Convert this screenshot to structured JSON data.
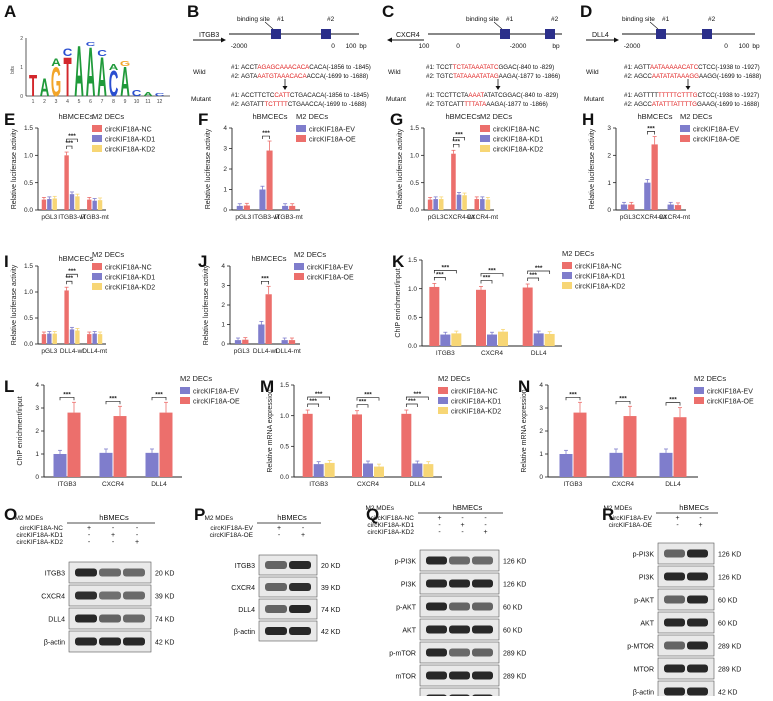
{
  "colors": {
    "nc": "#ec6f6c",
    "kd1": "#7f7dcc",
    "kd2": "#f7d675",
    "ev": "#7f7dcc",
    "oe": "#ec6f6c",
    "site": "#2b2f8a",
    "mut_red": "#e02020"
  },
  "panel_a": {
    "letter": "A",
    "y_label": "bits",
    "y_ticks": [
      "2",
      "1",
      "0"
    ],
    "x_ticks": [
      "1",
      "2",
      "3",
      "4",
      "5",
      "6",
      "7",
      "8",
      "9",
      "10",
      "11",
      "12"
    ],
    "logo_letters": [
      "T",
      "A",
      "G",
      "T",
      "A",
      "A",
      "A",
      "C",
      "A"
    ]
  },
  "promoters": [
    {
      "letter": "B",
      "gene": "ITGB3",
      "arrow": "right",
      "site1": "#1",
      "site2": "#2",
      "site_label": "binding site",
      "axis": [
        "-2000",
        "0",
        "100",
        "bp"
      ],
      "wild_label": "Wild",
      "mutant_label": "Mutant",
      "wild": [
        {
          "pre": "#1: ACCT",
          "mid": "AGAGCAAACACA",
          "post": "CACA(-1856 to -1845)"
        },
        {
          "pre": "#2: AGTA",
          "mid": "AATGTAAACACA",
          "post": "ACCA(-1699 to -1688)"
        }
      ],
      "mutant": [
        {
          "pre": "#1: ACCTTCTC",
          "mid": "CATT",
          "post": "CTGACACA(-1856 to -1845)"
        },
        {
          "pre": "#2: AGTATT",
          "mid": "TCTTTT",
          "post": "CTGAACCA(-1699 to -1688)"
        }
      ]
    },
    {
      "letter": "C",
      "gene": "CXCR4",
      "arrow": "left",
      "site1": "#1",
      "site2": "#2",
      "site_label": "binding site",
      "axis": [
        "100",
        "0",
        "-2000",
        "bp"
      ],
      "wild_label": "Wild",
      "mutant_label": "Mutant",
      "wild": [
        {
          "pre": "#1: TCCT",
          "mid": "TCTATAAATATC",
          "post": "GGAC(-840 to -829)"
        },
        {
          "pre": "#2: TGTC",
          "mid": "TATAAAATATAG",
          "post": "AAGA(-1877 to -1866)"
        }
      ],
      "mutant": [
        {
          "pre": "#1: TCCTTCTA",
          "mid": "AAAT",
          "post": "ATATCGGAC(-840 to -829)"
        },
        {
          "pre": "#2: TGTCATT",
          "mid": "TTTATA",
          "post": "AAGA(-1877 to -1866)"
        }
      ]
    },
    {
      "letter": "D",
      "gene": "DLL4",
      "arrow": "right",
      "site1": "#1",
      "site2": "#2",
      "site_label": "binding site",
      "axis": [
        "-2000",
        "0",
        "100",
        "bp"
      ],
      "wild_label": "Wild",
      "mutant_label": "Mutant",
      "wild": [
        {
          "pre": "#1: AGTT",
          "mid": "AATAAAAACATC",
          "post": "CTCC(-1938 to -1927)"
        },
        {
          "pre": "#2: AGCC",
          "mid": "AATATATAAAGG",
          "post": "AAGG(-1699 to -1688)"
        }
      ],
      "mutant": [
        {
          "pre": "#1: AGTTTT",
          "mid": "TTTTTCTTTG",
          "post": "CTCC(-1938 to -1927)"
        },
        {
          "pre": "#2: AGCC",
          "mid": "ATATTTATTTTG",
          "post": "GAAG(-1699 to -1688)"
        }
      ]
    }
  ],
  "chart_data": [
    {
      "letter": "E",
      "type": "bar",
      "title": "hBMCECs",
      "legend_title": "M2 DECs",
      "ylabel": "Relative luciferase activity",
      "ylim": [
        0,
        1.5
      ],
      "yticks": [
        "0.0",
        "0.5",
        "1.0",
        "1.5"
      ],
      "categories": [
        "pGL3",
        "ITGB3-wt",
        "ITGB3-mt"
      ],
      "series": [
        {
          "name": "circKIF18A-NC",
          "color_key": "nc",
          "values": [
            0.19,
            1.0,
            0.19
          ]
        },
        {
          "name": "circKIF18A-KD1",
          "color_key": "kd1",
          "values": [
            0.2,
            0.29,
            0.17
          ]
        },
        {
          "name": "circKIF18A-KD2",
          "color_key": "kd2",
          "values": [
            0.21,
            0.25,
            0.18
          ]
        }
      ],
      "sig": [
        "***",
        "***"
      ]
    },
    {
      "letter": "F",
      "type": "bar",
      "title": "hBMCECs",
      "legend_title": "M2 DECs",
      "ylabel": "Relative luciferase activity",
      "ylim": [
        0,
        4
      ],
      "yticks": [
        "0",
        "1",
        "2",
        "3",
        "4"
      ],
      "categories": [
        "pGL3",
        "ITGB3-wt",
        "ITGB3-mt"
      ],
      "series": [
        {
          "name": "circKIF18A-EV",
          "color_key": "ev",
          "values": [
            0.2,
            1.0,
            0.2
          ]
        },
        {
          "name": "circKIF18A-OE",
          "color_key": "oe",
          "values": [
            0.22,
            2.9,
            0.2
          ]
        }
      ],
      "sig": [
        "***"
      ]
    },
    {
      "letter": "G",
      "type": "bar",
      "title": "hBMCECs",
      "legend_title": "M2 DECs",
      "ylabel": "Relative luciferase activity",
      "ylim": [
        0,
        1.5
      ],
      "yticks": [
        "0.0",
        "0.5",
        "1.0",
        "1.5"
      ],
      "categories": [
        "pGL3",
        "CXCR4-wt",
        "CXCR4-mt"
      ],
      "series": [
        {
          "name": "circKIF18A-NC",
          "color_key": "nc",
          "values": [
            0.19,
            1.03,
            0.2
          ]
        },
        {
          "name": "circKIF18A-KD1",
          "color_key": "kd1",
          "values": [
            0.2,
            0.28,
            0.2
          ]
        },
        {
          "name": "circKIF18A-KD2",
          "color_key": "kd2",
          "values": [
            0.2,
            0.27,
            0.19
          ]
        }
      ],
      "sig": [
        "***",
        "***"
      ]
    },
    {
      "letter": "H",
      "type": "bar",
      "title": "hBMCECs",
      "legend_title": "M2 DECs",
      "ylabel": "Relative luciferase activity",
      "ylim": [
        0,
        3
      ],
      "yticks": [
        "0",
        "1",
        "2",
        "3"
      ],
      "categories": [
        "pGL3",
        "CXCR4-wt",
        "CXCR4-mt"
      ],
      "series": [
        {
          "name": "circKIF18A-EV",
          "color_key": "ev",
          "values": [
            0.2,
            1.0,
            0.2
          ]
        },
        {
          "name": "circKIF18A-OE",
          "color_key": "oe",
          "values": [
            0.2,
            2.4,
            0.18
          ]
        }
      ],
      "sig": [
        "***"
      ]
    },
    {
      "letter": "I",
      "type": "bar",
      "title": "hBMCECs",
      "legend_title": "M2 DECs",
      "ylabel": "Relative luciferase activity",
      "ylim": [
        0,
        1.5
      ],
      "yticks": [
        "0.0",
        "0.5",
        "1.0",
        "1.5"
      ],
      "categories": [
        "pGL3",
        "DLL4-wt",
        "DLL4-mt"
      ],
      "series": [
        {
          "name": "circKIF18A-NC",
          "color_key": "nc",
          "values": [
            0.19,
            1.03,
            0.19
          ]
        },
        {
          "name": "circKIF18A-KD1",
          "color_key": "kd1",
          "values": [
            0.2,
            0.28,
            0.2
          ]
        },
        {
          "name": "circKIF18A-KD2",
          "color_key": "kd2",
          "values": [
            0.2,
            0.26,
            0.19
          ]
        }
      ],
      "sig": [
        "***",
        "***"
      ]
    },
    {
      "letter": "J",
      "type": "bar",
      "title": "hBMCECs",
      "legend_title": "M2 DECs",
      "ylabel": "Relative luciferase activity",
      "ylim": [
        0,
        4
      ],
      "yticks": [
        "0",
        "1",
        "2",
        "3",
        "4"
      ],
      "categories": [
        "pGL3",
        "DLL4-wt",
        "DLL4-mt"
      ],
      "series": [
        {
          "name": "circKIF18A-EV",
          "color_key": "ev",
          "values": [
            0.2,
            1.0,
            0.2
          ]
        },
        {
          "name": "circKIF18A-OE",
          "color_key": "oe",
          "values": [
            0.22,
            2.55,
            0.2
          ]
        }
      ],
      "sig": [
        "***"
      ]
    },
    {
      "letter": "K",
      "type": "bar",
      "title": "",
      "legend_title": "M2 DECs",
      "ylabel": "ChIP enrichment/input",
      "ylim": [
        0,
        1.5
      ],
      "yticks": [
        "0.0",
        "0.5",
        "1.0",
        "1.5"
      ],
      "categories": [
        "ITGB3",
        "CXCR4",
        "DLL4"
      ],
      "series": [
        {
          "name": "circKIF18A-NC",
          "color_key": "nc",
          "values": [
            1.03,
            0.98,
            1.02
          ]
        },
        {
          "name": "circKIF18A-KD1",
          "color_key": "kd1",
          "values": [
            0.2,
            0.2,
            0.22
          ]
        },
        {
          "name": "circKIF18A-KD2",
          "color_key": "kd2",
          "values": [
            0.22,
            0.25,
            0.21
          ]
        }
      ],
      "sig": [
        "***",
        "***"
      ]
    },
    {
      "letter": "L",
      "type": "bar",
      "title": "",
      "legend_title": "M2 DECs",
      "ylabel": "ChIP enrichment/input",
      "ylim": [
        0,
        4
      ],
      "yticks": [
        "0",
        "1",
        "2",
        "3",
        "4"
      ],
      "categories": [
        "ITGB3",
        "CXCR4",
        "DLL4"
      ],
      "series": [
        {
          "name": "circKIF18A-EV",
          "color_key": "ev",
          "values": [
            1.0,
            1.05,
            1.05
          ]
        },
        {
          "name": "circKIF18A-OE",
          "color_key": "oe",
          "values": [
            2.8,
            2.65,
            2.8
          ]
        }
      ],
      "sig": [
        "***"
      ]
    },
    {
      "letter": "M",
      "type": "bar",
      "title": "",
      "legend_title": "M2 DECs",
      "ylabel": "Relative mRNA expression",
      "ylim": [
        0,
        1.5
      ],
      "yticks": [
        "0.0",
        "0.5",
        "1.0",
        "1.5"
      ],
      "categories": [
        "ITGB3",
        "CXCR4",
        "DLL4"
      ],
      "series": [
        {
          "name": "circKIF18A-NC",
          "color_key": "nc",
          "values": [
            1.03,
            1.02,
            1.03
          ]
        },
        {
          "name": "circKIF18A-KD1",
          "color_key": "kd1",
          "values": [
            0.21,
            0.22,
            0.22
          ]
        },
        {
          "name": "circKIF18A-KD2",
          "color_key": "kd2",
          "values": [
            0.23,
            0.17,
            0.21
          ]
        }
      ],
      "sig": [
        "***",
        "***"
      ]
    },
    {
      "letter": "N",
      "type": "bar",
      "title": "",
      "legend_title": "M2 DECs",
      "ylabel": "Relative mRNA expression",
      "ylim": [
        0,
        4
      ],
      "yticks": [
        "0",
        "1",
        "2",
        "3",
        "4"
      ],
      "categories": [
        "ITGB3",
        "CXCR4",
        "DLL4"
      ],
      "series": [
        {
          "name": "circKIF18A-EV",
          "color_key": "ev",
          "values": [
            1.0,
            1.05,
            1.05
          ]
        },
        {
          "name": "circKIF18A-OE",
          "color_key": "oe",
          "values": [
            2.8,
            2.65,
            2.6
          ]
        }
      ],
      "sig": [
        "***"
      ]
    }
  ],
  "blots": [
    {
      "letter": "O",
      "header": "hBMECs",
      "label_w": 63,
      "lane_w": 24,
      "top_pad": 16,
      "band_h": 22,
      "conditions": [
        {
          "label": "M2 MDEs",
          "marks": []
        },
        {
          "label": "circKIF18A-NC",
          "marks": [
            "+",
            "-",
            "-"
          ]
        },
        {
          "label": "circKIF18A-KD1",
          "marks": [
            "-",
            "+",
            "-"
          ]
        },
        {
          "label": "circKIF18A-KD2",
          "marks": [
            "-",
            "-",
            "+"
          ]
        }
      ],
      "rows": [
        {
          "protein": "ITGB3",
          "kd": "20 KD",
          "intensity": [
            1.0,
            0.45,
            0.45
          ]
        },
        {
          "protein": "CXCR4",
          "kd": "39 KD",
          "intensity": [
            0.95,
            0.4,
            0.45
          ]
        },
        {
          "protein": "DLL4",
          "kd": "74 KD",
          "intensity": [
            1.0,
            0.5,
            0.45
          ]
        },
        {
          "protein": "β-actin",
          "kd": "42 KD",
          "intensity": [
            1.0,
            1.0,
            1.0
          ]
        }
      ]
    },
    {
      "letter": "P",
      "header": "hBMECs",
      "label_w": 63,
      "lane_w": 24,
      "top_pad": 16,
      "band_h": 21,
      "conditions": [
        {
          "label": "M2 MDEs",
          "marks": []
        },
        {
          "label": "circKIF18A-EV",
          "marks": [
            "+",
            "-"
          ]
        },
        {
          "label": "circKIF18A-OE",
          "marks": [
            "-",
            "+"
          ]
        }
      ],
      "rows": [
        {
          "protein": "ITGB3",
          "kd": "20 KD",
          "intensity": [
            0.5,
            1.0
          ]
        },
        {
          "protein": "CXCR4",
          "kd": "39 KD",
          "intensity": [
            0.5,
            0.95
          ]
        },
        {
          "protein": "DLL4",
          "kd": "74 KD",
          "intensity": [
            0.5,
            1.0
          ]
        },
        {
          "protein": "β-actin",
          "kd": "42 KD",
          "intensity": [
            1.0,
            1.0
          ]
        }
      ]
    },
    {
      "letter": "Q",
      "header": "hBMECs",
      "label_w": 56,
      "lane_w": 23,
      "top_pad": 14,
      "band_h": 22,
      "conditions": [
        {
          "label": "M2 MDEs",
          "marks": []
        },
        {
          "label": "circKIF18A-NC",
          "marks": [
            "+",
            "-",
            "-"
          ]
        },
        {
          "label": "circKIF18A-KD1",
          "marks": [
            "-",
            "+",
            "-"
          ]
        },
        {
          "label": "circKIF18A-KD2",
          "marks": [
            "-",
            "-",
            "+"
          ]
        }
      ],
      "rows": [
        {
          "protein": "p-PI3K",
          "kd": "126 KD",
          "intensity": [
            1.0,
            0.45,
            0.45
          ]
        },
        {
          "protein": "PI3K",
          "kd": "126 KD",
          "intensity": [
            1.0,
            1.0,
            1.0
          ]
        },
        {
          "protein": "p-AKT",
          "kd": "60 KD",
          "intensity": [
            1.0,
            0.5,
            0.5
          ]
        },
        {
          "protein": "AKT",
          "kd": "60 KD",
          "intensity": [
            1.0,
            1.0,
            1.0
          ]
        },
        {
          "protein": "p-mTOR",
          "kd": "289 KD",
          "intensity": [
            1.0,
            0.45,
            0.5
          ]
        },
        {
          "protein": "mTOR",
          "kd": "289 KD",
          "intensity": [
            1.0,
            1.0,
            1.0
          ]
        },
        {
          "protein": "β-actin",
          "kd": "42 KD",
          "intensity": [
            1.0,
            1.0,
            1.0
          ]
        }
      ]
    },
    {
      "letter": "R",
      "header": "hBMECs",
      "label_w": 56,
      "lane_w": 23,
      "top_pad": 14,
      "band_h": 22,
      "conditions": [
        {
          "label": "M2 MDEs",
          "marks": []
        },
        {
          "label": "circKIF18A-EV",
          "marks": [
            "+",
            "-"
          ]
        },
        {
          "label": "circKIF18A-OE",
          "marks": [
            "-",
            "+"
          ]
        }
      ],
      "rows": [
        {
          "protein": "p-PI3K",
          "kd": "126 KD",
          "intensity": [
            0.5,
            1.0
          ]
        },
        {
          "protein": "PI3K",
          "kd": "126 KD",
          "intensity": [
            1.0,
            1.0
          ]
        },
        {
          "protein": "p-AKT",
          "kd": "60 KD",
          "intensity": [
            0.5,
            1.0
          ]
        },
        {
          "protein": "AKT",
          "kd": "60 KD",
          "intensity": [
            1.0,
            1.0
          ]
        },
        {
          "protein": "p-MTOR",
          "kd": "289 KD",
          "intensity": [
            0.5,
            1.0
          ]
        },
        {
          "protein": "MTOR",
          "kd": "289 KD",
          "intensity": [
            1.0,
            1.0
          ]
        },
        {
          "protein": "β-actin",
          "kd": "42 KD",
          "intensity": [
            1.0,
            1.0
          ]
        }
      ]
    }
  ]
}
